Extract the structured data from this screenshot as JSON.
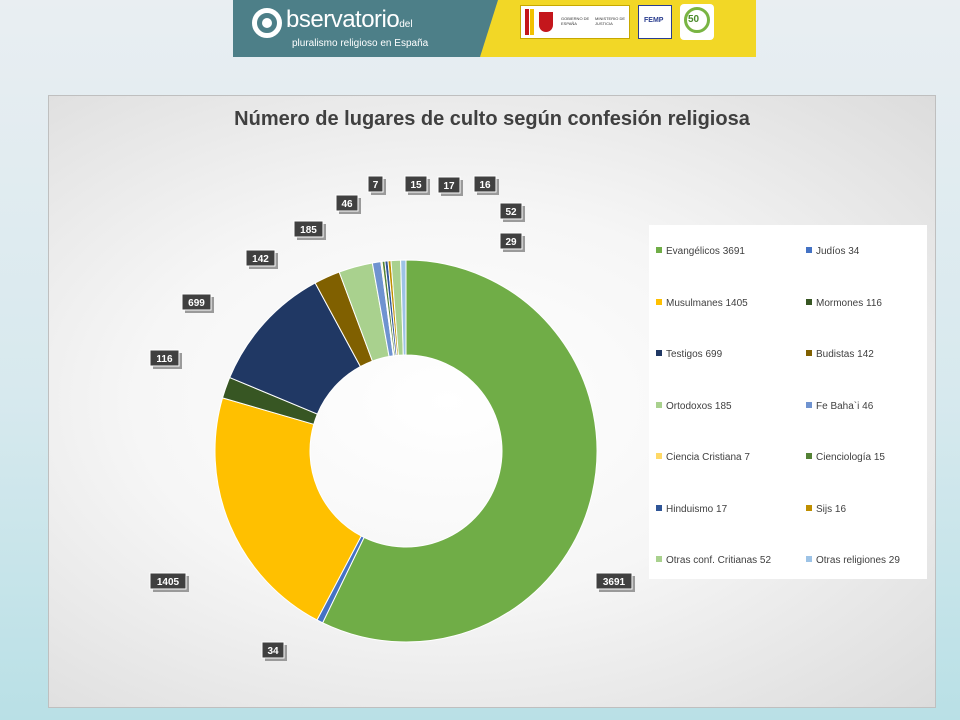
{
  "banner": {
    "logo_main": "bservatorio",
    "logo_del": "del",
    "logo_subtitle": "pluralismo religioso en España",
    "gov_line1": "GOBIERNO DE ESPAÑA",
    "gov_line2": "MINISTERIO DE JUSTICIA",
    "femp": "FEMP",
    "fifty": "50"
  },
  "colors": {
    "green": "#70ad47",
    "blue": "#4472c4",
    "gold": "#ffc000",
    "dark_green": "#375623",
    "navy": "#203864",
    "brown": "#806000",
    "light_green": "#a9d18e",
    "light_blue": "#8faadc",
    "pale_blue": "#9dc3e6",
    "label_bg": "#404040"
  },
  "chart_data": {
    "type": "pie",
    "subtype": "donut",
    "title": "Número de lugares de culto según confesión religiosa",
    "legend_position": "right",
    "series": [
      {
        "values": [
          3691,
          34,
          1405,
          116,
          699,
          142,
          185,
          46,
          7,
          15,
          17,
          16,
          52,
          29
        ],
        "colors": [
          "#70ad47",
          "#4472c4",
          "#ffc000",
          "#375623",
          "#203864",
          "#806000",
          "#a9d18e",
          "#6f93d0",
          "#ffd966",
          "#548235",
          "#2f5597",
          "#bf8f00",
          "#a9d18e",
          "#9dc3e6"
        ]
      }
    ],
    "categories": [
      "Evangélicos 3691",
      "Judíos 34",
      "Musulmanes 1405",
      "Mormones 116",
      "Testigos 699",
      "Budistas 142",
      "Ortodoxos 185",
      "Fe Baha`i 46",
      "Ciencia Cristiana 7",
      "Cienciología 15",
      "Hinduismo 17",
      "Sijs 16",
      "Otras conf. Critianas 52",
      "Otras religiones 29"
    ],
    "data_labels": [
      "3691",
      "34",
      "1405",
      "116",
      "699",
      "142",
      "185",
      "46",
      "7",
      "15",
      "17",
      "16",
      "52",
      "29"
    ]
  }
}
